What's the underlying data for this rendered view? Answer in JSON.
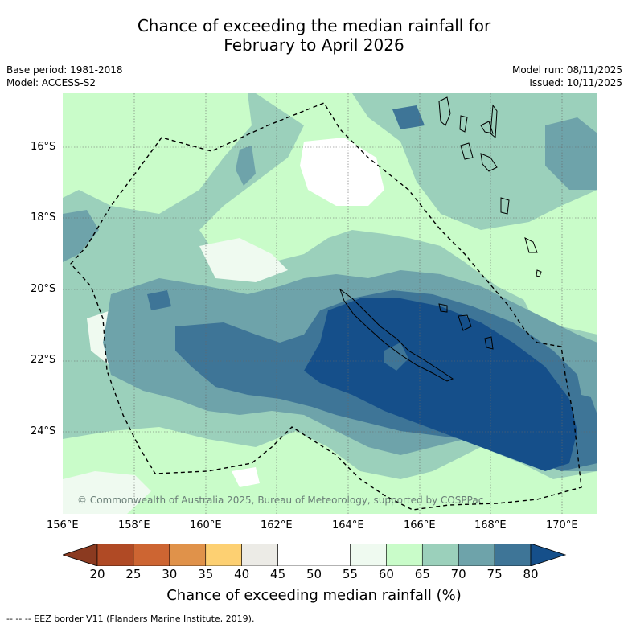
{
  "title_line1": "Chance of exceeding the median rainfall for",
  "title_line2": "February to April 2026",
  "base_period": "Base period: 1981-2018",
  "model": "Model: ACCESS-S2",
  "model_run": "Model run: 08/11/2025",
  "issued": "Issued: 10/11/2025",
  "copyright": "© Commonwealth of Australia 2025, Bureau of Meteorology, supported by COSPPac",
  "lat_ticks": [
    "16°S",
    "18°S",
    "20°S",
    "22°S",
    "24°S"
  ],
  "lon_ticks": [
    "156°E",
    "158°E",
    "160°E",
    "162°E",
    "164°E",
    "166°E",
    "168°E",
    "170°E"
  ],
  "colorbar": {
    "labels": [
      "20",
      "25",
      "30",
      "35",
      "40",
      "45",
      "50",
      "55",
      "60",
      "65",
      "70",
      "75",
      "80"
    ],
    "colors": [
      "#b04a25",
      "#cd6532",
      "#e0924a",
      "#fdd072",
      "#ecebe6",
      "#ffffff",
      "#ffffff",
      "#effaf0",
      "#c9fcc9",
      "#9bd0bb",
      "#6ea3aa",
      "#3e7597"
    ],
    "low_extend_color": "#8b3a20",
    "high_extend_color": "#154f8a",
    "label": "Chance of exceeding median rainfall (%)"
  },
  "legend_footer": "--  --  -- EEZ border V11 (Flanders Marine Institute, 2019).",
  "map_colors": {
    "p60_65": "#c9fcc9",
    "p65_70": "#9bd0bb",
    "p70_75": "#6ea3aa",
    "p75_80": "#3e7597",
    "p80": "#154f8a",
    "p50_55": "#ffffff",
    "p55_60": "#effaf0"
  }
}
